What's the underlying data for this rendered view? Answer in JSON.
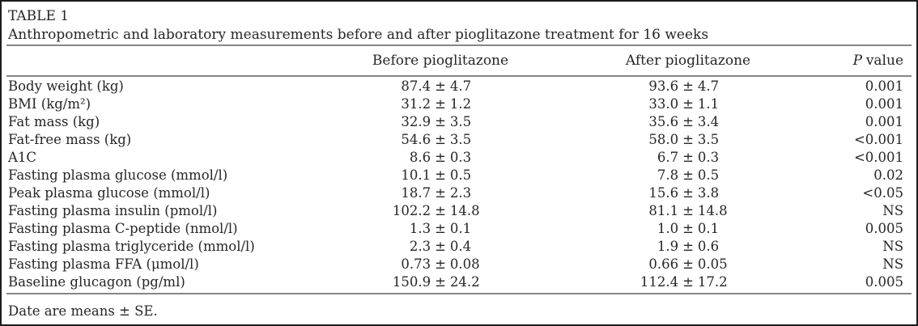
{
  "table": {
    "label": "TABLE 1",
    "caption": "Anthropometric and laboratory measurements before and after pioglitazone treatment for 16 weeks",
    "headers": {
      "before": "Before pioglitazone",
      "after": "After pioglitazone",
      "p_italic": "P",
      "p_rest": "value"
    },
    "pm": "±",
    "rows": [
      {
        "measure": "Body weight (kg)",
        "before_mean": "87.4",
        "before_se": "4.7",
        "after_mean": "93.6",
        "after_se": "4.7",
        "p": "0.001"
      },
      {
        "measure": "BMI (kg/m²)",
        "before_mean": "31.2",
        "before_se": "1.2",
        "after_mean": "33.0",
        "after_se": "1.1",
        "p": "0.001"
      },
      {
        "measure": "Fat mass (kg)",
        "before_mean": "32.9",
        "before_se": "3.5",
        "after_mean": "35.6",
        "after_se": "3.4",
        "p": "0.001"
      },
      {
        "measure": "Fat-free mass (kg)",
        "before_mean": "54.6",
        "before_se": "3.5",
        "after_mean": "58.0",
        "after_se": "3.5",
        "p": "<0.001"
      },
      {
        "measure": "A1C",
        "before_mean": "8.6",
        "before_se": "0.3",
        "after_mean": "6.7",
        "after_se": "0.3",
        "p": "<0.001"
      },
      {
        "measure": "Fasting plasma glucose (mmol/l)",
        "before_mean": "10.1",
        "before_se": "0.5",
        "after_mean": "7.8",
        "after_se": "0.5",
        "p": "0.02"
      },
      {
        "measure": "Peak plasma glucose (mmol/l)",
        "before_mean": "18.7",
        "before_se": "2.3",
        "after_mean": "15.6",
        "after_se": "3.8",
        "p": "<0.05"
      },
      {
        "measure": "Fasting plasma insulin (pmol/l)",
        "before_mean": "102.2",
        "before_se": "14.8",
        "after_mean": "81.1",
        "after_se": "14.8",
        "p": "NS"
      },
      {
        "measure": "Fasting plasma C-peptide (nmol/l)",
        "before_mean": "1.3",
        "before_se": "0.1",
        "after_mean": "1.0",
        "after_se": "0.1",
        "p": "0.005"
      },
      {
        "measure": "Fasting plasma triglyceride (mmol/l)",
        "before_mean": "2.3",
        "before_se": "0.4",
        "after_mean": "1.9",
        "after_se": "0.6",
        "p": "NS"
      },
      {
        "measure": "Fasting plasma FFA (μmol/l)",
        "before_mean": "0.73",
        "before_se": "0.08",
        "after_mean": "0.66",
        "after_se": "0.05",
        "p": "NS"
      },
      {
        "measure": "Baseline glucagon (pg/ml)",
        "before_mean": "150.9",
        "before_se": "24.2",
        "after_mean": "112.4",
        "after_se": "17.2",
        "p": "0.005"
      }
    ],
    "footnote": "Date are means ± SE."
  }
}
